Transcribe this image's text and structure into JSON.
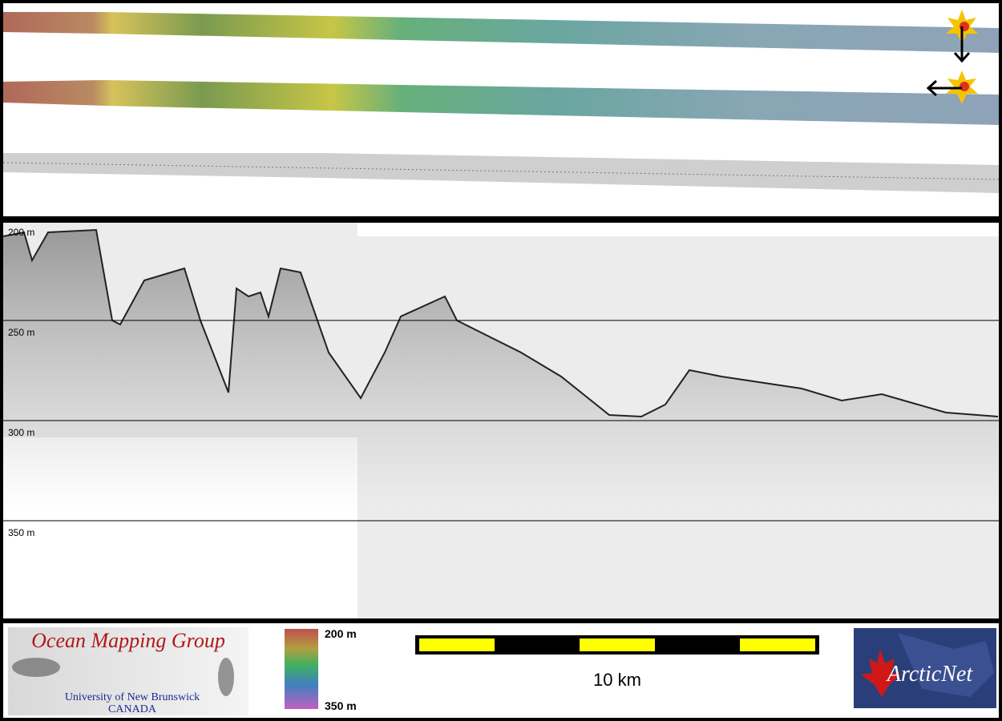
{
  "profile": {
    "depth_labels": [
      "200 m",
      "250 m",
      "300 m",
      "350 m"
    ]
  },
  "footer": {
    "logo_left": {
      "title": "Ocean Mapping Group",
      "subtitle": "University of New Brunswick",
      "country": "CANADA"
    },
    "color_scale": {
      "top": "200 m",
      "bottom": "350 m"
    },
    "scale_bar": {
      "label": "10 km"
    },
    "logo_right": {
      "label": "ArcticNet"
    }
  }
}
